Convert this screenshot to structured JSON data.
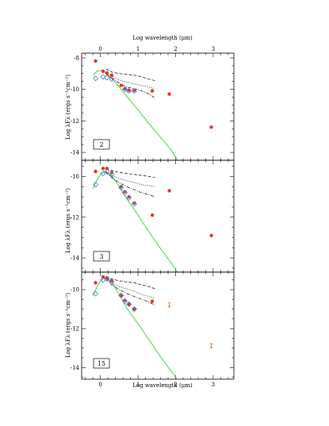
{
  "x_axis": {
    "title": "Log wavelength (μm)",
    "range": [
      -0.5,
      3.55
    ],
    "major_ticks": [
      "0",
      "1",
      "2",
      "3"
    ]
  },
  "y_axis_title_a": "Log λFλ (ergs s⁻¹cm⁻²)",
  "y_axis_title_b": "Log λFλ (ergs s⁻¹cm⁻²)",
  "y_axis_title_c": "Log λFλ (ergs s⁻¹cm⁻²)",
  "colors": {
    "observed": "#e8342a",
    "model_marker": "#3f7fd6",
    "stellar_photosphere": "#33d233",
    "upper_limit": "#f07a28",
    "envelopes": "#000000"
  },
  "chart_data": [
    {
      "type": "scatter",
      "panel_label": "2",
      "ylim": [
        -14.5,
        -7.7
      ],
      "y_ticks": [
        "-8",
        "-10",
        "-12",
        "-14"
      ],
      "observed": {
        "x": [
          -0.13,
          0.07,
          0.17,
          0.3,
          0.55,
          0.65,
          0.76,
          0.9,
          1.38,
          1.83,
          2.95
        ],
        "y": [
          -8.2,
          -8.85,
          -8.95,
          -9.1,
          -9.75,
          -9.95,
          -10.05,
          -10.05,
          -10.1,
          -10.3,
          -12.4
        ]
      },
      "model_points": {
        "x": [
          -0.13,
          0.07,
          0.17,
          0.3,
          0.65,
          0.76,
          0.9
        ],
        "y": [
          -9.3,
          -9.2,
          -9.25,
          -9.35,
          -10.0,
          -10.1,
          -10.1
        ]
      },
      "photosphere": {
        "x": [
          -0.2,
          -0.1,
          0.0,
          0.15,
          0.3,
          0.5,
          0.7,
          1.0,
          1.3,
          1.6,
          1.9,
          2.05
        ],
        "y": [
          -9.1,
          -8.85,
          -8.8,
          -8.95,
          -9.3,
          -9.85,
          -10.45,
          -11.3,
          -12.2,
          -13.05,
          -13.9,
          -14.5
        ]
      },
      "envelopes": [
        {
          "style": "dashed",
          "x": [
            0.15,
            0.3,
            0.5,
            0.7,
            0.9,
            1.1,
            1.3,
            1.45
          ],
          "y": [
            -8.7,
            -8.9,
            -9.0,
            -9.05,
            -9.1,
            -9.2,
            -9.35,
            -9.45
          ]
        },
        {
          "style": "dotted",
          "x": [
            0.15,
            0.3,
            0.5,
            0.7,
            0.9,
            1.1,
            1.3,
            1.45
          ],
          "y": [
            -8.95,
            -9.15,
            -9.4,
            -9.55,
            -9.65,
            -9.75,
            -9.85,
            -9.95
          ]
        },
        {
          "style": "dashdot",
          "x": [
            0.15,
            0.3,
            0.5,
            0.7,
            0.9,
            1.1,
            1.3,
            1.45
          ],
          "y": [
            -9.05,
            -9.3,
            -9.6,
            -9.85,
            -9.95,
            -10.1,
            -10.3,
            -10.55
          ]
        }
      ],
      "upper_limits": {
        "x": [],
        "y": []
      }
    },
    {
      "type": "scatter",
      "panel_label": "3",
      "ylim": [
        -14.7,
        -9.2
      ],
      "y_ticks": [
        "-10",
        "-12",
        "-14"
      ],
      "observed": {
        "x": [
          -0.13,
          0.07,
          0.17,
          0.3,
          0.55,
          0.65,
          0.76,
          0.9,
          1.38,
          1.83,
          2.95
        ],
        "y": [
          -9.75,
          -9.6,
          -9.6,
          -9.8,
          -10.5,
          -10.75,
          -11.0,
          -11.3,
          -11.9,
          -10.7,
          -12.9
        ]
      },
      "model_points": {
        "x": [
          -0.13,
          0.07,
          0.17,
          0.3,
          0.55,
          0.65,
          0.76,
          0.9
        ],
        "y": [
          -10.4,
          -9.85,
          -9.75,
          -9.9,
          -10.55,
          -10.8,
          -11.05,
          -11.35
        ]
      },
      "photosphere": {
        "x": [
          -0.2,
          -0.1,
          0.0,
          0.15,
          0.3,
          0.5,
          0.7,
          1.0,
          1.3,
          1.6,
          1.9,
          2.05
        ],
        "y": [
          -10.6,
          -10.2,
          -9.9,
          -9.75,
          -9.95,
          -10.5,
          -11.1,
          -11.9,
          -12.75,
          -13.55,
          -14.3,
          -14.7
        ]
      },
      "envelopes": [
        {
          "style": "dashed",
          "x": [
            0.15,
            0.3,
            0.5,
            0.7,
            0.9,
            1.1,
            1.3,
            1.45
          ],
          "y": [
            -9.6,
            -9.7,
            -9.8,
            -9.85,
            -9.9,
            -9.95,
            -10.0,
            -10.05
          ]
        },
        {
          "style": "dotted",
          "x": [
            0.15,
            0.3,
            0.5,
            0.7,
            0.9,
            1.1,
            1.3,
            1.45
          ],
          "y": [
            -9.75,
            -9.95,
            -10.1,
            -10.2,
            -10.3,
            -10.4,
            -10.45,
            -10.5
          ]
        },
        {
          "style": "dashdot",
          "x": [
            0.15,
            0.3,
            0.5,
            0.7,
            0.9,
            1.1,
            1.3,
            1.45
          ],
          "y": [
            -9.8,
            -10.05,
            -10.3,
            -10.5,
            -10.65,
            -10.8,
            -10.9,
            -11.0
          ]
        }
      ],
      "upper_limits": {
        "x": [],
        "y": []
      }
    },
    {
      "type": "scatter",
      "panel_label": "15",
      "ylim": [
        -14.6,
        -9.1
      ],
      "y_ticks": [
        "-10",
        "-12",
        "-14"
      ],
      "observed": {
        "x": [
          -0.13,
          0.07,
          0.17,
          0.3,
          0.55,
          0.65,
          0.76,
          0.9,
          1.38
        ],
        "y": [
          -9.65,
          -9.35,
          -9.4,
          -9.55,
          -10.3,
          -10.55,
          -10.75,
          -11.0,
          -10.6
        ]
      },
      "model_points": {
        "x": [
          -0.13,
          0.07,
          0.17,
          0.3,
          0.55,
          0.65,
          0.76,
          0.9
        ],
        "y": [
          -10.2,
          -9.5,
          -9.45,
          -9.6,
          -10.3,
          -10.6,
          -10.75,
          -11.0
        ]
      },
      "photosphere": {
        "x": [
          -0.2,
          -0.1,
          0.0,
          0.15,
          0.3,
          0.5,
          0.7,
          1.0,
          1.3,
          1.6,
          1.9,
          2.05
        ],
        "y": [
          -10.3,
          -9.9,
          -9.55,
          -9.35,
          -9.6,
          -10.25,
          -10.95,
          -11.75,
          -12.6,
          -13.45,
          -14.25,
          -14.6
        ]
      },
      "envelopes": [
        {
          "style": "dashed",
          "x": [
            0.15,
            0.3,
            0.5,
            0.7,
            0.9,
            1.1,
            1.3,
            1.45
          ],
          "y": [
            -9.3,
            -9.45,
            -9.55,
            -9.6,
            -9.65,
            -9.75,
            -9.85,
            -9.95
          ]
        },
        {
          "style": "dotted",
          "x": [
            0.15,
            0.3,
            0.5,
            0.7,
            0.9,
            1.1,
            1.3,
            1.45
          ],
          "y": [
            -9.4,
            -9.65,
            -9.85,
            -9.95,
            -10.1,
            -10.25,
            -10.35,
            -10.45
          ]
        },
        {
          "style": "dashdot",
          "x": [
            0.15,
            0.3,
            0.5,
            0.7,
            0.9,
            1.1,
            1.3,
            1.45
          ],
          "y": [
            -9.45,
            -9.75,
            -10.0,
            -10.2,
            -10.35,
            -10.5,
            -10.65,
            -10.8
          ]
        }
      ],
      "upper_limits": {
        "x": [
          1.83,
          2.95
        ],
        "y": [
          -10.8,
          -12.9
        ]
      }
    }
  ]
}
